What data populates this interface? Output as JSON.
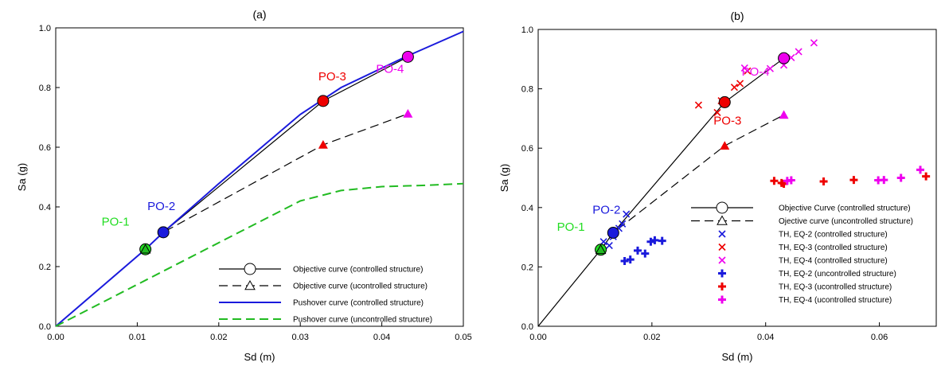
{
  "chart_data": [
    {
      "type": "line",
      "title": "(a)",
      "xlabel": "Sd (m)",
      "ylabel": "Sa (g)",
      "xlim": [
        0,
        0.05
      ],
      "ylim": [
        0,
        1.0
      ],
      "xticks": [
        "0.00",
        "0.01",
        "0.02",
        "0.03",
        "0.04",
        "0.05"
      ],
      "yticks": [
        "0.0",
        "0.2",
        "0.4",
        "0.6",
        "0.8",
        "1.0"
      ],
      "grid": false,
      "legend_position": "bottom-right",
      "series": [
        {
          "name": "Objective curve (controlled structure)",
          "style": "solid",
          "color": "#000000",
          "marker": "circle",
          "points": [
            [
              0.011,
              0.258
            ],
            [
              0.0132,
              0.315
            ],
            [
              0.0328,
              0.755
            ],
            [
              0.0432,
              0.903
            ]
          ]
        },
        {
          "name": "Objective curve (ucontrolled structure)",
          "style": "dash",
          "color": "#000000",
          "marker": "triangle",
          "points": [
            [
              0.011,
              0.258
            ],
            [
              0.0132,
              0.315
            ],
            [
              0.0328,
              0.608
            ],
            [
              0.0432,
              0.712
            ]
          ]
        },
        {
          "name": "Pushover curve (controlled structure)",
          "style": "solid",
          "color": "#1a1adc",
          "points": [
            [
              0,
              0
            ],
            [
              0.011,
              0.258
            ],
            [
              0.0132,
              0.315
            ],
            [
              0.02,
              0.478
            ],
            [
              0.03,
              0.71
            ],
            [
              0.035,
              0.8
            ],
            [
              0.043,
              0.904
            ],
            [
              0.05,
              0.988
            ]
          ]
        },
        {
          "name": "Pushover curve (uncontrolled structure)",
          "style": "dash",
          "color": "#22bb22",
          "points": [
            [
              0,
              0
            ],
            [
              0.01,
              0.14
            ],
            [
              0.02,
              0.28
            ],
            [
              0.03,
              0.42
            ],
            [
              0.035,
              0.455
            ],
            [
              0.04,
              0.468
            ],
            [
              0.045,
              0.472
            ],
            [
              0.05,
              0.478
            ]
          ]
        }
      ],
      "performance_points": [
        {
          "label": "PO-1",
          "x": 0.011,
          "y": 0.258,
          "color": "#22dd22"
        },
        {
          "label": "PO-2",
          "x": 0.0132,
          "y": 0.315,
          "color": "#1a1adc"
        },
        {
          "label": "PO-3",
          "x": 0.0328,
          "y": 0.755,
          "color": "#ee0000"
        },
        {
          "label": "PO-4",
          "x": 0.0432,
          "y": 0.903,
          "color": "#ee00ee"
        }
      ]
    },
    {
      "type": "scatter",
      "title": "(b)",
      "xlabel": "Sd (m)",
      "ylabel": "Sa (g)",
      "xlim": [
        0,
        0.07
      ],
      "ylim": [
        0,
        1.0
      ],
      "xticks": [
        "0.00",
        "0.02",
        "0.04",
        "0.06"
      ],
      "yticks": [
        "0.0",
        "0.2",
        "0.4",
        "0.6",
        "0.8",
        "1.0"
      ],
      "grid": false,
      "legend_position": "bottom-right",
      "series": [
        {
          "name": "Objective Curve (controlled structure)",
          "style": "solid",
          "color": "#000000",
          "marker": "circle",
          "points": [
            [
              0,
              0
            ],
            [
              0.011,
              0.258
            ],
            [
              0.0132,
              0.315
            ],
            [
              0.0328,
              0.755
            ],
            [
              0.0432,
              0.903
            ]
          ]
        },
        {
          "name": "Ojective curve (uncontrolled structure)",
          "style": "dash",
          "color": "#000000",
          "marker": "triangle",
          "points": [
            [
              0.011,
              0.258
            ],
            [
              0.0132,
              0.315
            ],
            [
              0.0328,
              0.608
            ],
            [
              0.0432,
              0.712
            ]
          ]
        },
        {
          "name": "TH, EQ-2 (controlled structure)",
          "marker": "x",
          "color": "#1a1adc",
          "points": [
            [
              0.0115,
              0.285
            ],
            [
              0.0125,
              0.272
            ],
            [
              0.0132,
              0.302
            ],
            [
              0.0142,
              0.33
            ],
            [
              0.0148,
              0.345
            ],
            [
              0.0155,
              0.378
            ]
          ]
        },
        {
          "name": "TH, EQ-3 (controlled structure)",
          "marker": "x",
          "color": "#ee0000",
          "points": [
            [
              0.0282,
              0.745
            ],
            [
              0.0315,
              0.72
            ],
            [
              0.0322,
              0.76
            ],
            [
              0.0345,
              0.805
            ],
            [
              0.0355,
              0.818
            ],
            [
              0.0368,
              0.86
            ]
          ]
        },
        {
          "name": "TH, EQ-4 (controlled structure)",
          "marker": "x",
          "color": "#ee00ee",
          "points": [
            [
              0.0363,
              0.87
            ],
            [
              0.0408,
              0.868
            ],
            [
              0.0432,
              0.88
            ],
            [
              0.0445,
              0.905
            ],
            [
              0.0458,
              0.925
            ],
            [
              0.0485,
              0.955
            ]
          ]
        },
        {
          "name": "TH, EQ-2 (uncontrolled structure)",
          "marker": "plus",
          "color": "#1a1adc",
          "points": [
            [
              0.0152,
              0.22
            ],
            [
              0.0162,
              0.225
            ],
            [
              0.0175,
              0.255
            ],
            [
              0.0188,
              0.245
            ],
            [
              0.0198,
              0.285
            ],
            [
              0.0205,
              0.29
            ],
            [
              0.0218,
              0.288
            ]
          ]
        },
        {
          "name": "TH, EQ-3 (ucontrolled structure)",
          "marker": "plus",
          "color": "#ee0000",
          "points": [
            [
              0.0415,
              0.49
            ],
            [
              0.0428,
              0.483
            ],
            [
              0.0432,
              0.48
            ],
            [
              0.0502,
              0.488
            ],
            [
              0.0555,
              0.493
            ],
            [
              0.0682,
              0.505
            ]
          ]
        },
        {
          "name": "TH, EQ-4 (ucontrolled structure)",
          "marker": "plus",
          "color": "#ee00ee",
          "points": [
            [
              0.0438,
              0.49
            ],
            [
              0.0445,
              0.492
            ],
            [
              0.0598,
              0.492
            ],
            [
              0.0608,
              0.493
            ],
            [
              0.0638,
              0.5
            ],
            [
              0.0672,
              0.527
            ]
          ]
        }
      ],
      "performance_points": [
        {
          "label": "PO-1",
          "x": 0.011,
          "y": 0.258,
          "color": "#22dd22"
        },
        {
          "label": "PO-2",
          "x": 0.0132,
          "y": 0.315,
          "color": "#1a1adc"
        },
        {
          "label": "PO-3",
          "x": 0.0328,
          "y": 0.755,
          "color": "#ee0000"
        },
        {
          "label": "PO-4",
          "x": 0.0432,
          "y": 0.903,
          "color": "#ee00ee"
        }
      ]
    }
  ]
}
